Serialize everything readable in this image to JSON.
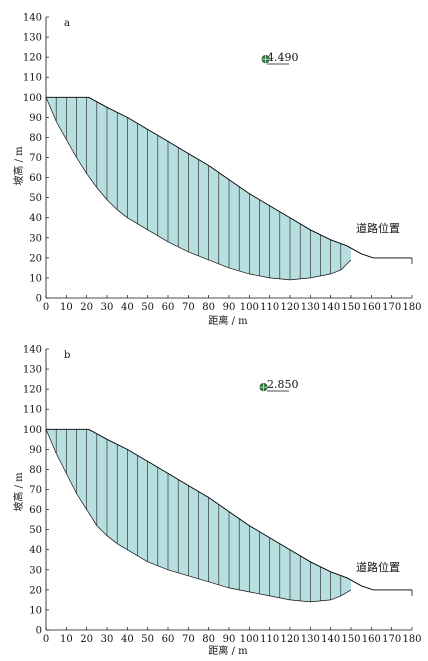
{
  "panels": [
    {
      "id": "a",
      "label": "a",
      "factor_of_safety": "4.490",
      "road_label": "道路位置",
      "xlabel": "距离 / m",
      "ylabel": "坡高 / m",
      "xticks": [
        0,
        10,
        20,
        30,
        40,
        50,
        60,
        70,
        80,
        90,
        100,
        110,
        120,
        130,
        140,
        150,
        160,
        170,
        180
      ],
      "yticks": [
        0,
        10,
        20,
        30,
        40,
        50,
        60,
        70,
        80,
        90,
        100,
        110,
        120,
        130,
        140
      ],
      "slip_surface_bottom": [
        [
          0,
          100
        ],
        [
          5,
          88
        ],
        [
          10,
          79
        ],
        [
          15,
          70
        ],
        [
          20,
          62
        ],
        [
          25,
          55
        ],
        [
          30,
          49
        ],
        [
          35,
          44
        ],
        [
          40,
          40
        ],
        [
          50,
          34
        ],
        [
          60,
          28
        ],
        [
          70,
          23
        ],
        [
          80,
          19
        ],
        [
          90,
          15
        ],
        [
          100,
          12
        ],
        [
          110,
          10
        ],
        [
          120,
          9
        ],
        [
          130,
          10
        ],
        [
          140,
          12
        ],
        [
          145,
          14
        ],
        [
          150,
          19
        ]
      ],
      "slope_profile": [
        [
          0,
          100
        ],
        [
          21,
          100
        ],
        [
          30,
          95
        ],
        [
          40,
          90
        ],
        [
          50,
          84
        ],
        [
          60,
          78
        ],
        [
          70,
          72
        ],
        [
          80,
          66
        ],
        [
          90,
          59
        ],
        [
          100,
          52
        ],
        [
          110,
          46
        ],
        [
          120,
          40
        ],
        [
          130,
          34
        ],
        [
          140,
          29
        ],
        [
          148,
          26
        ],
        [
          155,
          22
        ],
        [
          161,
          20
        ],
        [
          175,
          20
        ],
        [
          180,
          20
        ]
      ],
      "slice_x": [
        5,
        10,
        15,
        20,
        25,
        30,
        35,
        40,
        45,
        50,
        55,
        60,
        65,
        70,
        75,
        80,
        85,
        90,
        95,
        100,
        105,
        110,
        115,
        120,
        125,
        130,
        135,
        140,
        145
      ],
      "center": [
        108,
        119
      ],
      "fos_label_pos": [
        110,
        121
      ]
    },
    {
      "id": "b",
      "label": "b",
      "factor_of_safety": "2.850",
      "road_label": "道路位置",
      "xlabel": "距离 / m",
      "ylabel": "坡高 / m",
      "xticks": [
        0,
        10,
        20,
        30,
        40,
        50,
        60,
        70,
        80,
        90,
        100,
        110,
        120,
        130,
        140,
        150,
        160,
        170,
        180
      ],
      "yticks": [
        0,
        10,
        20,
        30,
        40,
        50,
        60,
        70,
        80,
        90,
        100,
        110,
        120,
        130,
        140
      ],
      "slip_surface_bottom": [
        [
          0,
          100
        ],
        [
          5,
          88
        ],
        [
          10,
          78
        ],
        [
          15,
          68
        ],
        [
          20,
          60
        ],
        [
          25,
          52
        ],
        [
          30,
          47
        ],
        [
          35,
          43
        ],
        [
          40,
          40
        ],
        [
          50,
          34
        ],
        [
          60,
          30
        ],
        [
          70,
          27
        ],
        [
          80,
          24
        ],
        [
          90,
          21
        ],
        [
          100,
          19
        ],
        [
          110,
          17
        ],
        [
          120,
          15
        ],
        [
          130,
          14
        ],
        [
          140,
          15
        ],
        [
          145,
          17
        ],
        [
          150,
          20
        ]
      ],
      "slope_profile": [
        [
          0,
          100
        ],
        [
          21,
          100
        ],
        [
          30,
          95
        ],
        [
          40,
          90
        ],
        [
          50,
          84
        ],
        [
          60,
          78
        ],
        [
          70,
          72
        ],
        [
          80,
          66
        ],
        [
          90,
          59
        ],
        [
          100,
          52
        ],
        [
          110,
          46
        ],
        [
          120,
          40
        ],
        [
          130,
          34
        ],
        [
          140,
          29
        ],
        [
          148,
          26
        ],
        [
          155,
          22
        ],
        [
          161,
          20
        ],
        [
          175,
          20
        ],
        [
          180,
          20
        ]
      ],
      "slice_x": [
        5,
        10,
        15,
        20,
        25,
        30,
        35,
        40,
        45,
        50,
        55,
        60,
        65,
        70,
        75,
        80,
        85,
        90,
        95,
        100,
        105,
        110,
        115,
        120,
        125,
        130,
        135,
        140,
        145
      ],
      "center": [
        107,
        121
      ],
      "fos_label_pos": [
        109,
        123
      ]
    }
  ],
  "colors": {
    "slide_fill": "#b7dfe0",
    "slice_line": "#1a1a1a",
    "profile_line": "#000000",
    "center_marker": "#2f7a3b"
  }
}
